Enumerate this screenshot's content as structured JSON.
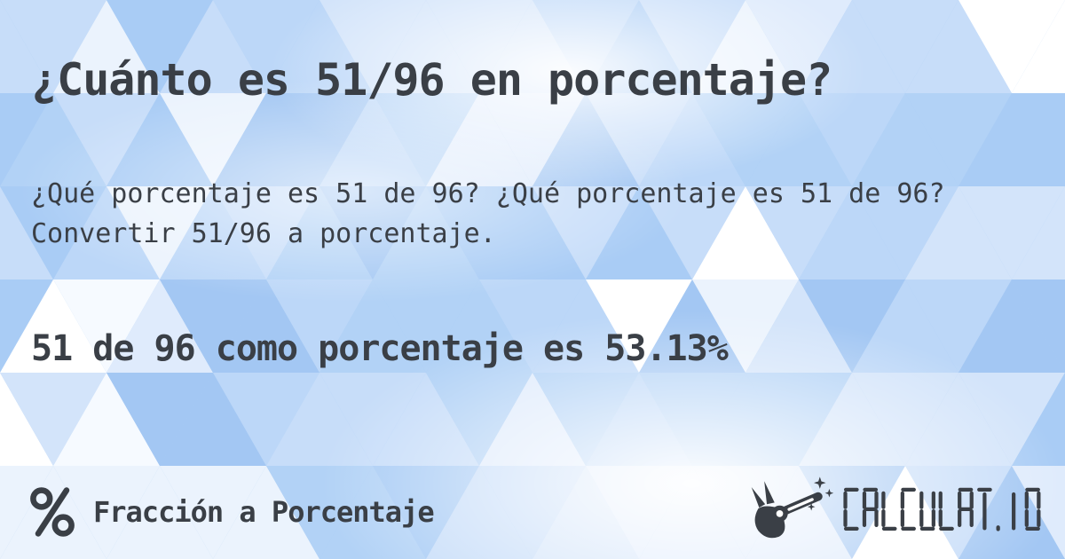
{
  "card": {
    "title": "¿Cuánto es 51/96 en porcentaje?",
    "description": "¿Qué porcentaje es 51 de 96? ¿Qué porcentaje es 51 de 96? Convertir 51/96 a porcentaje.",
    "answer": "51 de 96 como porcentaje es 53.13%"
  },
  "footer": {
    "category_label": "Fracción a Porcentaje",
    "category_icon": "percent-icon",
    "logo_text": "CALCULAT.IO",
    "logo_icon": "magic-wand-hand-icon"
  },
  "colors": {
    "text": "#3a3f46",
    "background_base": "#a9ccf5",
    "mosaic_palette": [
      "#a3c7f3",
      "#a9ccf5",
      "#a9ccf5",
      "#b2d2f6",
      "#b2d2f6",
      "#bcd7f8",
      "#bcd7f8",
      "#c7ddf9",
      "#c7ddf9",
      "#d3e4fa",
      "#dfebfc",
      "#ebf3fd",
      "#f6faff",
      "#ffffff"
    ]
  }
}
